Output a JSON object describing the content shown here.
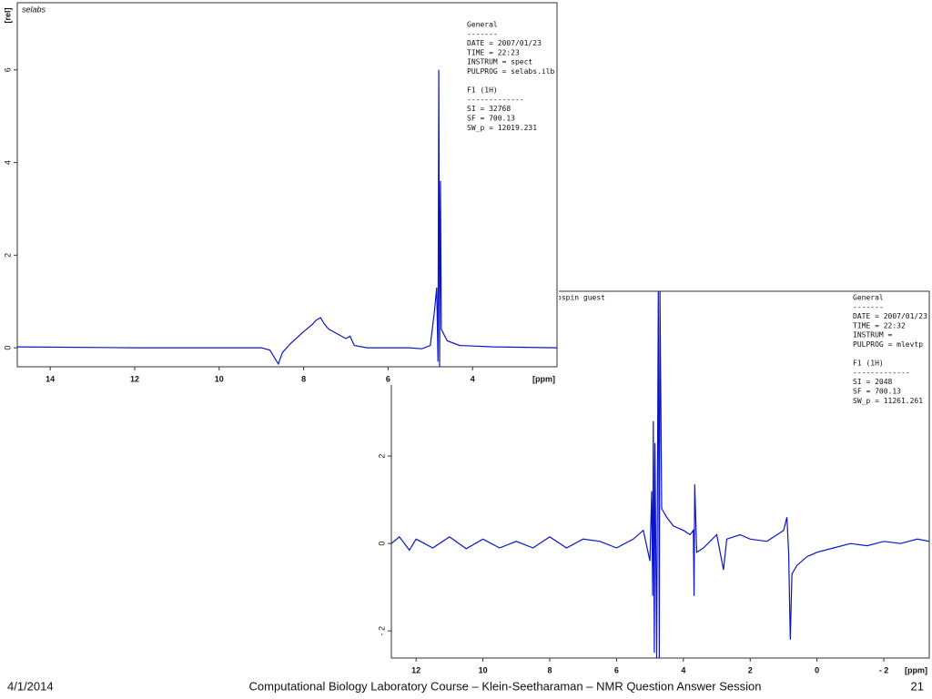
{
  "chart_data": [
    {
      "type": "line",
      "title": "selabs",
      "y_label": "[rel]",
      "x_label": "[ppm]",
      "annotations": [
        "General",
        "-------",
        "DATE = 2007/01/23",
        "TIME = 22:23",
        "INSTRUM = spect",
        "PULPROG = selabs.ilb",
        "",
        "F1 (1H)",
        "-------------",
        "SI =  32768",
        "SF =  700.13",
        "SW_p =  12019.231"
      ],
      "x": [
        14.78,
        12,
        10,
        9,
        8.8,
        8.6,
        8.5,
        8.3,
        8,
        7.8,
        7.7,
        7.6,
        7.5,
        7.4,
        7.2,
        7.0,
        6.9,
        6.8,
        6.5,
        5.5,
        5.2,
        5.0,
        4.9,
        4.85,
        4.82,
        4.8,
        4.78,
        4.76,
        4.74,
        4.6,
        4.3,
        3.5,
        2.0
      ],
      "series": [
        {
          "color": "#0a14c8",
          "values": [
            0.02,
            0.0,
            0.0,
            0.0,
            -0.05,
            -0.35,
            -0.1,
            0.1,
            0.35,
            0.5,
            0.6,
            0.65,
            0.5,
            0.4,
            0.3,
            0.2,
            0.25,
            0.05,
            0.0,
            0.0,
            -0.02,
            0.05,
            0.8,
            1.3,
            -0.3,
            6.0,
            -0.4,
            3.6,
            0.4,
            0.15,
            0.05,
            0.02,
            0.0
          ]
        }
      ],
      "xlim": [
        14.78,
        2.0
      ],
      "ylim": [
        -0.41,
        7.45
      ],
      "xticks": [
        14,
        12,
        10,
        8,
        6,
        4
      ],
      "yticks": [
        0,
        2,
        4,
        6
      ]
    },
    {
      "type": "line",
      "title": "ospin  guest",
      "x_label": "[ppm]",
      "annotations": [
        "General",
        "-------",
        "DATE = 2007/01/23",
        "TIME = 22:32",
        "INSTRUM =",
        "PULPROG = mlevtp",
        "",
        "F1 (1H)",
        "-------------",
        "SI =  2048",
        "SF =  700.13",
        "SW_p =  11261.261"
      ],
      "x": [
        12.74,
        12.5,
        12.2,
        12,
        11.5,
        11,
        10.5,
        10,
        9.5,
        9,
        8.5,
        8,
        7.5,
        7,
        6.5,
        6,
        5.5,
        5.2,
        5.0,
        4.95,
        4.92,
        4.9,
        4.87,
        4.85,
        4.8,
        4.75,
        4.72,
        4.7,
        4.65,
        4.5,
        4.3,
        4.0,
        3.8,
        3.7,
        3.68,
        3.66,
        3.6,
        3.4,
        3.0,
        2.8,
        2.7,
        2.3,
        2.0,
        1.5,
        1.0,
        0.9,
        0.85,
        0.8,
        0.75,
        0.6,
        0.3,
        0,
        -0.5,
        -1,
        -1.5,
        -2,
        -2.5,
        -3,
        -3.36
      ],
      "series": [
        {
          "color": "#0a14c8",
          "values": [
            0,
            0.15,
            -0.15,
            0.1,
            -0.1,
            0.15,
            -0.12,
            0.1,
            -0.1,
            0.05,
            -0.1,
            0.15,
            -0.1,
            0.1,
            0.05,
            -0.1,
            0.1,
            0.3,
            -0.4,
            1.2,
            -1.2,
            2.8,
            -2.5,
            2.3,
            -2.62,
            5.77,
            -2.62,
            5.77,
            0.8,
            0.6,
            0.4,
            0.3,
            0.2,
            0.3,
            -1.2,
            1.35,
            -0.2,
            -0.1,
            0.2,
            -0.6,
            0.1,
            0.2,
            0.1,
            0.05,
            0.3,
            0.6,
            -0.2,
            -2.2,
            -0.7,
            -0.5,
            -0.3,
            -0.2,
            -0.1,
            0,
            -0.05,
            0.05,
            0,
            0.1,
            0.05
          ]
        }
      ],
      "xlim": [
        12.74,
        -3.36
      ],
      "ylim": [
        -2.62,
        5.77
      ],
      "xticks": [
        12,
        10,
        8,
        6,
        4,
        2,
        0,
        {
          "value": -2,
          "label": "- 2"
        }
      ],
      "yticks": [
        {
          "value": -2,
          "label": "- 2"
        },
        0,
        2
      ]
    }
  ],
  "footer": {
    "date": "4/1/2014",
    "title": "Computational Biology Laboratory Course – Klein-Seetharaman – NMR Question Answer Session",
    "page": "21"
  }
}
